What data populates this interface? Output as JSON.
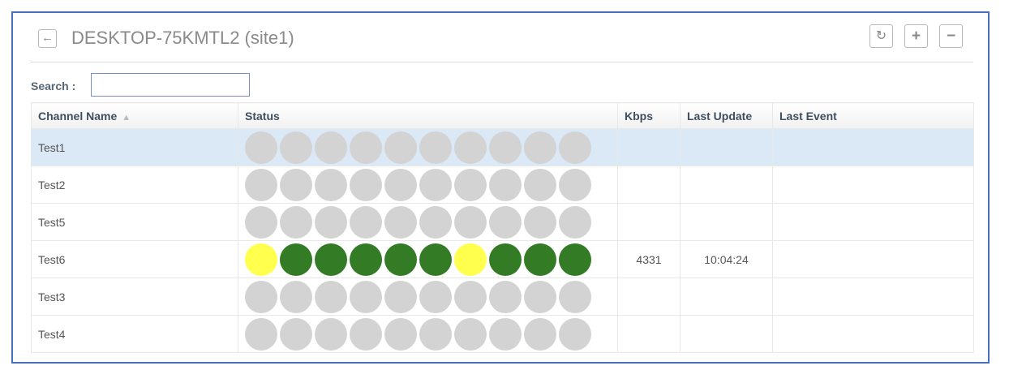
{
  "header": {
    "title": "DESKTOP-75KMTL2 (site1)",
    "back_icon": "arrow-left-icon",
    "tools": [
      {
        "name": "refresh-button",
        "icon": "refresh-icon",
        "glyph": "↻"
      },
      {
        "name": "add-button",
        "icon": "plus-icon",
        "glyph": "+"
      },
      {
        "name": "remove-button",
        "icon": "minus-icon",
        "glyph": "−"
      }
    ]
  },
  "search": {
    "label": "Search :",
    "value": ""
  },
  "table": {
    "columns": {
      "channel_name": "Channel Name",
      "status": "Status",
      "kbps": "Kbps",
      "last_update": "Last Update",
      "last_event": "Last Event"
    },
    "rows": [
      {
        "name": "Test1",
        "kbps": "",
        "last_update": "",
        "last_event": "",
        "selected": true,
        "status": [
          "gray",
          "gray",
          "gray",
          "gray",
          "gray",
          "gray",
          "gray",
          "gray",
          "gray",
          "gray"
        ]
      },
      {
        "name": "Test2",
        "kbps": "",
        "last_update": "",
        "last_event": "",
        "selected": false,
        "status": [
          "gray",
          "gray",
          "gray",
          "gray",
          "gray",
          "gray",
          "gray",
          "gray",
          "gray",
          "gray"
        ]
      },
      {
        "name": "Test5",
        "kbps": "",
        "last_update": "",
        "last_event": "",
        "selected": false,
        "status": [
          "gray",
          "gray",
          "gray",
          "gray",
          "gray",
          "gray",
          "gray",
          "gray",
          "gray",
          "gray"
        ]
      },
      {
        "name": "Test6",
        "kbps": "4331",
        "last_update": "10:04:24",
        "last_event": "",
        "selected": false,
        "status": [
          "yellow",
          "green",
          "green",
          "green",
          "green",
          "green",
          "yellow",
          "green",
          "green",
          "green"
        ]
      },
      {
        "name": "Test3",
        "kbps": "",
        "last_update": "",
        "last_event": "",
        "selected": false,
        "status": [
          "gray",
          "gray",
          "gray",
          "gray",
          "gray",
          "gray",
          "gray",
          "gray",
          "gray",
          "gray"
        ]
      },
      {
        "name": "Test4",
        "kbps": "",
        "last_update": "",
        "last_event": "",
        "selected": false,
        "status": [
          "gray",
          "gray",
          "gray",
          "gray",
          "gray",
          "gray",
          "gray",
          "gray",
          "gray",
          "gray"
        ]
      }
    ]
  },
  "colors": {
    "gray": "#d3d3d3",
    "green": "#347b26",
    "yellow": "#ffff4d",
    "frame_border": "#4a6fc2"
  }
}
